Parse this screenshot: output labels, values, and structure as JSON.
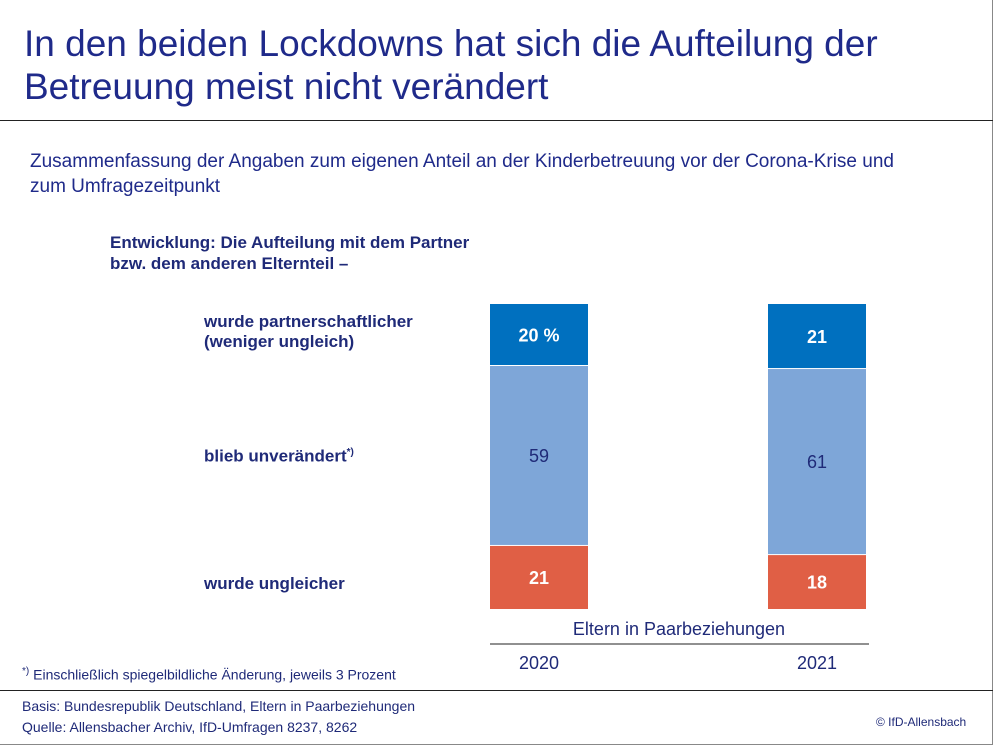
{
  "title": "In den beiden Lockdowns hat sich die Aufteilung der Betreuung meist nicht verändert",
  "subtitle": "Zusammenfassung der Angaben zum eigenen Anteil an der Kinderbetreuung vor der Corona-Krise und zum Umfragezeitpunkt",
  "heading": "Entwicklung: Die Aufteilung mit dem Partner bzw. dem anderen Elternteil –",
  "footnote": "Einschließlich spiegelbildliche Änderung, jeweils 3 Prozent",
  "footnote_mark": "*)",
  "basis": "Basis: Bundesrepublik Deutschland, Eltern in Paarbeziehungen",
  "source": "Quelle: Allensbacher Archiv, IfD-Umfragen 8237, 8262",
  "copyright": "© IfD-Allensbach",
  "chart_data": {
    "type": "bar",
    "stacked": true,
    "unit": "%",
    "group_label": "Eltern in Paarbeziehungen",
    "categories": [
      "2020",
      "2021"
    ],
    "series": [
      {
        "name": "wurde partnerschaftlicher (weniger ungleich)",
        "values": [
          20,
          21
        ],
        "color": "#0070bf"
      },
      {
        "name": "blieb unverändert",
        "name_mark": "*)",
        "values": [
          59,
          61
        ],
        "color": "#7ea6d8"
      },
      {
        "name": "wurde ungleicher",
        "values": [
          21,
          18
        ],
        "color": "#e05f45"
      }
    ],
    "data_labels": [
      [
        "20 %",
        "21"
      ],
      [
        "59",
        "61"
      ],
      [
        "21",
        "18"
      ]
    ]
  }
}
